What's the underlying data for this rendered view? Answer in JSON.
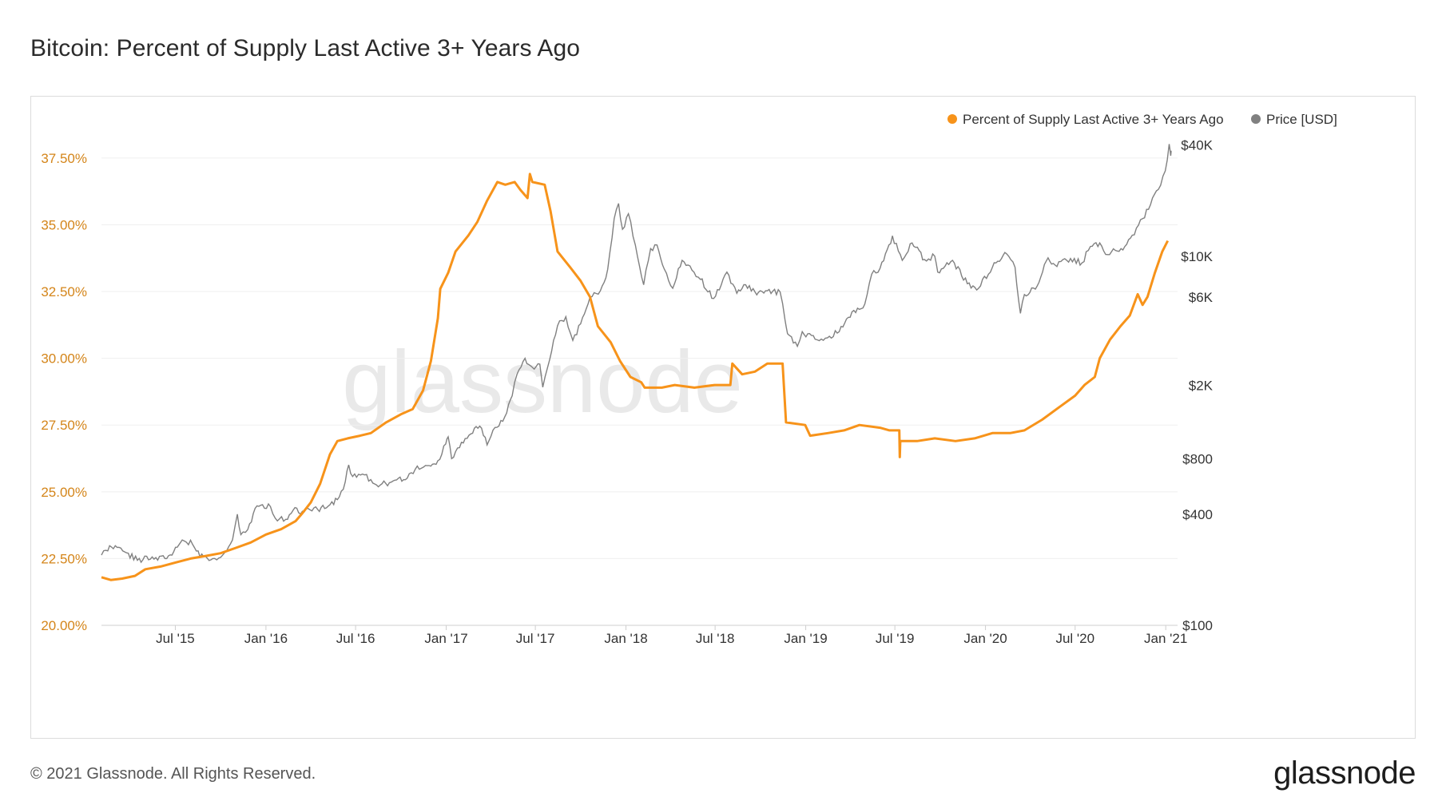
{
  "header": {
    "title": "Bitcoin: Percent of Supply Last Active 3+ Years Ago"
  },
  "footer": {
    "copyright": "© 2021 Glassnode. All Rights Reserved.",
    "brand": "glassnode"
  },
  "watermark": "glassnode",
  "colors": {
    "supply": "#f7931a",
    "price": "#808080",
    "axis_left": "#d4851a",
    "grid": "#eeeeee"
  },
  "chart_data": {
    "type": "line",
    "title": "Bitcoin: Percent of Supply Last Active 3+ Years Ago",
    "legend_position": "top-right",
    "grid": true,
    "x_ticks": [
      "Jul '15",
      "Jan '16",
      "Jul '16",
      "Jan '17",
      "Jul '17",
      "Jan '18",
      "Jul '18",
      "Jan '19",
      "Jul '19",
      "Jan '20",
      "Jul '20",
      "Jan '21"
    ],
    "y_left": {
      "ticks": [
        "20.00%",
        "22.50%",
        "25.00%",
        "27.50%",
        "30.00%",
        "32.50%",
        "35.00%",
        "37.50%"
      ],
      "range": [
        20,
        39.2
      ]
    },
    "y_right": {
      "scale": "log",
      "ticks": [
        "$100",
        "$400",
        "$800",
        "$2K",
        "$6K",
        "$10K",
        "$40K"
      ],
      "tick_values": [
        100,
        400,
        800,
        2000,
        6000,
        10000,
        40000
      ],
      "range": [
        100,
        60000
      ]
    },
    "series": [
      {
        "name": "Percent of Supply Last Active 3+ Years Ago",
        "axis": "left",
        "points": [
          [
            "2015-02-01",
            21.8
          ],
          [
            "2015-02-20",
            21.7
          ],
          [
            "2015-03-15",
            21.75
          ],
          [
            "2015-04-10",
            21.85
          ],
          [
            "2015-05-01",
            22.1
          ],
          [
            "2015-06-01",
            22.2
          ],
          [
            "2015-07-01",
            22.35
          ],
          [
            "2015-08-01",
            22.5
          ],
          [
            "2015-09-01",
            22.6
          ],
          [
            "2015-10-01",
            22.7
          ],
          [
            "2015-11-01",
            22.9
          ],
          [
            "2015-12-01",
            23.1
          ],
          [
            "2016-01-01",
            23.4
          ],
          [
            "2016-02-01",
            23.6
          ],
          [
            "2016-03-01",
            23.9
          ],
          [
            "2016-03-15",
            24.2
          ],
          [
            "2016-04-01",
            24.6
          ],
          [
            "2016-04-20",
            25.3
          ],
          [
            "2016-05-10",
            26.4
          ],
          [
            "2016-05-25",
            26.9
          ],
          [
            "2016-06-15",
            27.0
          ],
          [
            "2016-07-10",
            27.1
          ],
          [
            "2016-08-01",
            27.2
          ],
          [
            "2016-09-01",
            27.6
          ],
          [
            "2016-10-01",
            27.9
          ],
          [
            "2016-10-25",
            28.1
          ],
          [
            "2016-11-15",
            28.8
          ],
          [
            "2016-12-01",
            29.9
          ],
          [
            "2016-12-15",
            31.5
          ],
          [
            "2016-12-20",
            32.6
          ],
          [
            "2017-01-05",
            33.2
          ],
          [
            "2017-01-20",
            34.0
          ],
          [
            "2017-02-15",
            34.6
          ],
          [
            "2017-03-05",
            35.1
          ],
          [
            "2017-03-25",
            35.9
          ],
          [
            "2017-04-15",
            36.6
          ],
          [
            "2017-05-01",
            36.5
          ],
          [
            "2017-05-20",
            36.6
          ],
          [
            "2017-06-01",
            36.3
          ],
          [
            "2017-06-15",
            36.0
          ],
          [
            "2017-06-20",
            36.9
          ],
          [
            "2017-06-25",
            36.6
          ],
          [
            "2017-07-20",
            36.5
          ],
          [
            "2017-08-01",
            35.5
          ],
          [
            "2017-08-15",
            34.0
          ],
          [
            "2017-09-10",
            33.4
          ],
          [
            "2017-10-01",
            32.9
          ],
          [
            "2017-10-20",
            32.3
          ],
          [
            "2017-11-05",
            31.2
          ],
          [
            "2017-12-01",
            30.6
          ],
          [
            "2017-12-20",
            29.9
          ],
          [
            "2018-01-10",
            29.3
          ],
          [
            "2018-02-01",
            29.1
          ],
          [
            "2018-02-08",
            28.9
          ],
          [
            "2018-03-15",
            28.9
          ],
          [
            "2018-04-10",
            29.0
          ],
          [
            "2018-05-20",
            28.9
          ],
          [
            "2018-06-30",
            29.0
          ],
          [
            "2018-08-01",
            29.0
          ],
          [
            "2018-08-05",
            29.8
          ],
          [
            "2018-08-25",
            29.4
          ],
          [
            "2018-09-20",
            29.5
          ],
          [
            "2018-10-15",
            29.8
          ],
          [
            "2018-11-15",
            29.8
          ],
          [
            "2018-11-22",
            27.6
          ],
          [
            "2018-12-31",
            27.5
          ],
          [
            "2019-01-10",
            27.1
          ],
          [
            "2019-02-15",
            27.2
          ],
          [
            "2019-03-20",
            27.3
          ],
          [
            "2019-04-20",
            27.5
          ],
          [
            "2019-06-01",
            27.4
          ],
          [
            "2019-06-20",
            27.3
          ],
          [
            "2019-07-10",
            27.3
          ],
          [
            "2019-07-11",
            26.3
          ],
          [
            "2019-07-12",
            26.9
          ],
          [
            "2019-08-15",
            26.9
          ],
          [
            "2019-09-20",
            27.0
          ],
          [
            "2019-11-01",
            26.9
          ],
          [
            "2019-12-10",
            27.0
          ],
          [
            "2020-01-15",
            27.2
          ],
          [
            "2020-02-20",
            27.2
          ],
          [
            "2020-03-20",
            27.3
          ],
          [
            "2020-04-25",
            27.7
          ],
          [
            "2020-06-01",
            28.2
          ],
          [
            "2020-07-01",
            28.6
          ],
          [
            "2020-07-20",
            29.0
          ],
          [
            "2020-08-10",
            29.3
          ],
          [
            "2020-08-20",
            30.0
          ],
          [
            "2020-09-10",
            30.7
          ],
          [
            "2020-10-01",
            31.2
          ],
          [
            "2020-10-20",
            31.6
          ],
          [
            "2020-11-05",
            32.4
          ],
          [
            "2020-11-15",
            32.0
          ],
          [
            "2020-11-25",
            32.3
          ],
          [
            "2020-12-10",
            33.2
          ],
          [
            "2020-12-25",
            34.0
          ],
          [
            "2021-01-05",
            34.4
          ]
        ]
      },
      {
        "name": "Price [USD]",
        "axis": "right",
        "points": [
          [
            "2015-02-01",
            240
          ],
          [
            "2015-02-10",
            255
          ],
          [
            "2015-03-01",
            270
          ],
          [
            "2015-03-20",
            250
          ],
          [
            "2015-04-15",
            225
          ],
          [
            "2015-05-15",
            235
          ],
          [
            "2015-06-10",
            230
          ],
          [
            "2015-07-05",
            265
          ],
          [
            "2015-07-15",
            290
          ],
          [
            "2015-08-05",
            275
          ],
          [
            "2015-08-20",
            235
          ],
          [
            "2015-09-15",
            230
          ],
          [
            "2015-10-05",
            240
          ],
          [
            "2015-10-25",
            290
          ],
          [
            "2015-11-04",
            400
          ],
          [
            "2015-11-11",
            310
          ],
          [
            "2015-11-25",
            330
          ],
          [
            "2015-12-10",
            430
          ],
          [
            "2015-12-25",
            450
          ],
          [
            "2016-01-10",
            440
          ],
          [
            "2016-01-20",
            380
          ],
          [
            "2016-02-10",
            375
          ],
          [
            "2016-02-25",
            420
          ],
          [
            "2016-03-15",
            415
          ],
          [
            "2016-04-15",
            425
          ],
          [
            "2016-05-10",
            450
          ],
          [
            "2016-05-25",
            480
          ],
          [
            "2016-06-10",
            600
          ],
          [
            "2016-06-17",
            740
          ],
          [
            "2016-06-25",
            640
          ],
          [
            "2016-07-15",
            660
          ],
          [
            "2016-08-05",
            590
          ],
          [
            "2016-08-20",
            575
          ],
          [
            "2016-09-15",
            605
          ],
          [
            "2016-10-10",
            615
          ],
          [
            "2016-10-30",
            700
          ],
          [
            "2016-11-20",
            735
          ],
          [
            "2016-12-15",
            780
          ],
          [
            "2016-12-31",
            960
          ],
          [
            "2017-01-05",
            1050
          ],
          [
            "2017-01-12",
            800
          ],
          [
            "2017-02-01",
            980
          ],
          [
            "2017-02-20",
            1090
          ],
          [
            "2017-03-10",
            1200
          ],
          [
            "2017-03-25",
            950
          ],
          [
            "2017-04-10",
            1180
          ],
          [
            "2017-04-30",
            1350
          ],
          [
            "2017-05-15",
            1750
          ],
          [
            "2017-05-25",
            2300
          ],
          [
            "2017-06-10",
            2800
          ],
          [
            "2017-06-25",
            2500
          ],
          [
            "2017-07-10",
            2600
          ],
          [
            "2017-07-16",
            1950
          ],
          [
            "2017-07-30",
            2750
          ],
          [
            "2017-08-15",
            4200
          ],
          [
            "2017-09-01",
            4700
          ],
          [
            "2017-09-15",
            3500
          ],
          [
            "2017-10-01",
            4300
          ],
          [
            "2017-10-20",
            6000
          ],
          [
            "2017-11-10",
            6500
          ],
          [
            "2017-11-25",
            8500
          ],
          [
            "2017-12-08",
            16000
          ],
          [
            "2017-12-17",
            19300
          ],
          [
            "2017-12-25",
            14000
          ],
          [
            "2018-01-06",
            17000
          ],
          [
            "2018-01-20",
            11500
          ],
          [
            "2018-02-06",
            7000
          ],
          [
            "2018-02-20",
            11000
          ],
          [
            "2018-03-05",
            11500
          ],
          [
            "2018-03-20",
            8500
          ],
          [
            "2018-04-06",
            6700
          ],
          [
            "2018-04-25",
            9500
          ],
          [
            "2018-05-15",
            8400
          ],
          [
            "2018-06-01",
            7500
          ],
          [
            "2018-06-28",
            5900
          ],
          [
            "2018-07-25",
            8200
          ],
          [
            "2018-08-14",
            6300
          ],
          [
            "2018-09-01",
            7000
          ],
          [
            "2018-09-20",
            6400
          ],
          [
            "2018-10-15",
            6500
          ],
          [
            "2018-11-10",
            6400
          ],
          [
            "2018-11-20",
            4500
          ],
          [
            "2018-11-25",
            3800
          ],
          [
            "2018-12-15",
            3250
          ],
          [
            "2018-12-25",
            3900
          ],
          [
            "2019-01-20",
            3550
          ],
          [
            "2019-02-10",
            3600
          ],
          [
            "2019-03-10",
            3900
          ],
          [
            "2019-04-05",
            5000
          ],
          [
            "2019-05-01",
            5500
          ],
          [
            "2019-05-15",
            8000
          ],
          [
            "2019-06-01",
            8600
          ],
          [
            "2019-06-26",
            12900
          ],
          [
            "2019-07-16",
            9500
          ],
          [
            "2019-08-05",
            11800
          ],
          [
            "2019-08-30",
            9600
          ],
          [
            "2019-09-20",
            10000
          ],
          [
            "2019-09-26",
            8200
          ],
          [
            "2019-10-26",
            9500
          ],
          [
            "2019-11-25",
            7100
          ],
          [
            "2019-12-18",
            6700
          ],
          [
            "2020-01-15",
            8700
          ],
          [
            "2020-02-13",
            10300
          ],
          [
            "2020-03-01",
            8700
          ],
          [
            "2020-03-12",
            4900
          ],
          [
            "2020-03-20",
            6200
          ],
          [
            "2020-04-15",
            6900
          ],
          [
            "2020-05-07",
            9800
          ],
          [
            "2020-05-25",
            8800
          ],
          [
            "2020-06-10",
            9700
          ],
          [
            "2020-07-15",
            9200
          ],
          [
            "2020-08-01",
            11300
          ],
          [
            "2020-08-20",
            11800
          ],
          [
            "2020-09-05",
            10200
          ],
          [
            "2020-10-10",
            11300
          ],
          [
            "2020-10-25",
            13000
          ],
          [
            "2020-11-15",
            16000
          ],
          [
            "2020-12-01",
            19000
          ],
          [
            "2020-12-17",
            23000
          ],
          [
            "2020-12-31",
            29000
          ],
          [
            "2021-01-08",
            40500
          ],
          [
            "2021-01-11",
            35000
          ],
          [
            "2021-01-13",
            37000
          ]
        ]
      }
    ]
  }
}
